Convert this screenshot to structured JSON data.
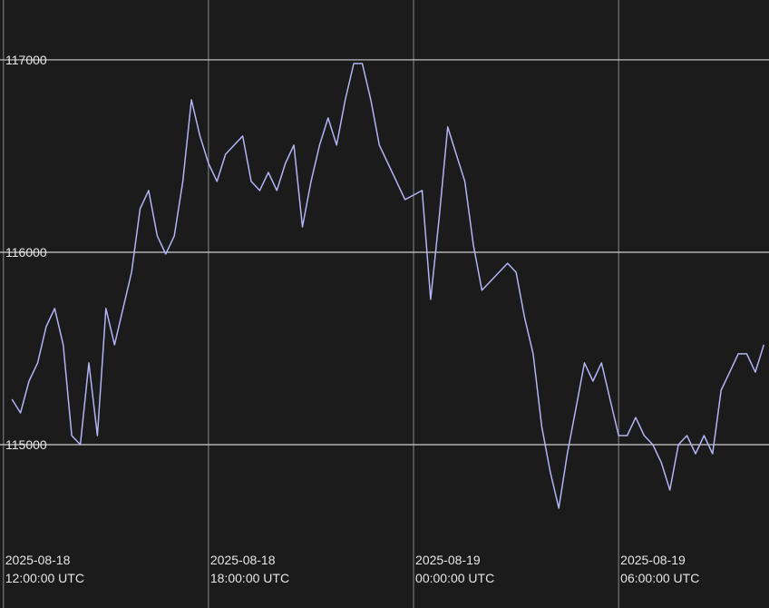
{
  "chart_data": {
    "type": "line",
    "color": "#b3b3f5",
    "x": [
      "2025-08-18 12:15",
      "2025-08-18 12:30",
      "2025-08-18 12:45",
      "2025-08-18 13:00",
      "2025-08-18 13:15",
      "2025-08-18 13:30",
      "2025-08-18 13:45",
      "2025-08-18 14:00",
      "2025-08-18 14:15",
      "2025-08-18 14:30",
      "2025-08-18 14:45",
      "2025-08-18 15:00",
      "2025-08-18 15:15",
      "2025-08-18 15:30",
      "2025-08-18 15:45",
      "2025-08-18 16:00",
      "2025-08-18 16:15",
      "2025-08-18 16:30",
      "2025-08-18 16:45",
      "2025-08-18 17:00",
      "2025-08-18 17:15",
      "2025-08-18 17:30",
      "2025-08-18 17:45",
      "2025-08-18 18:00",
      "2025-08-18 18:15",
      "2025-08-18 18:30",
      "2025-08-18 18:45",
      "2025-08-18 19:00",
      "2025-08-18 19:15",
      "2025-08-18 19:30",
      "2025-08-18 19:45",
      "2025-08-18 20:00",
      "2025-08-18 20:15",
      "2025-08-18 20:30",
      "2025-08-18 20:45",
      "2025-08-18 21:00",
      "2025-08-18 21:15",
      "2025-08-18 21:30",
      "2025-08-18 21:45",
      "2025-08-18 22:00",
      "2025-08-18 22:15",
      "2025-08-18 22:30",
      "2025-08-18 22:45",
      "2025-08-18 23:00",
      "2025-08-18 23:15",
      "2025-08-18 23:30",
      "2025-08-18 23:45",
      "2025-08-19 00:00",
      "2025-08-19 00:15",
      "2025-08-19 00:30",
      "2025-08-19 00:45",
      "2025-08-19 01:00",
      "2025-08-19 01:15",
      "2025-08-19 01:30",
      "2025-08-19 01:45",
      "2025-08-19 02:00",
      "2025-08-19 02:15",
      "2025-08-19 02:30",
      "2025-08-19 02:45",
      "2025-08-19 03:00",
      "2025-08-19 03:15",
      "2025-08-19 03:30",
      "2025-08-19 03:45",
      "2025-08-19 04:00",
      "2025-08-19 04:15",
      "2025-08-19 04:30",
      "2025-08-19 04:45",
      "2025-08-19 05:00",
      "2025-08-19 05:15",
      "2025-08-19 05:30",
      "2025-08-19 05:45",
      "2025-08-19 06:00",
      "2025-08-19 06:15",
      "2025-08-19 06:30",
      "2025-08-19 06:45",
      "2025-08-19 07:00",
      "2025-08-19 07:15",
      "2025-08-19 07:30",
      "2025-08-19 07:45",
      "2025-08-19 08:00",
      "2025-08-19 08:15",
      "2025-08-19 08:30",
      "2025-08-19 08:45",
      "2025-08-19 09:00",
      "2025-08-19 09:15",
      "2025-08-19 09:30",
      "2025-08-19 09:45",
      "2025-08-19 10:00",
      "2025-08-19 10:15"
    ],
    "values": [
      115236,
      115165,
      115330,
      115425,
      115613,
      115708,
      115519,
      115047,
      115000,
      115425,
      115047,
      115708,
      115519,
      115708,
      115896,
      116226,
      116321,
      116085,
      115991,
      116085,
      116368,
      116792,
      116604,
      116462,
      116368,
      116509,
      116557,
      116604,
      116368,
      116321,
      116415,
      116321,
      116462,
      116557,
      116132,
      116368,
      116557,
      116698,
      116557,
      116792,
      116981,
      116981,
      116792,
      116557,
      116462,
      116368,
      116274,
      116297,
      116321,
      115755,
      116179,
      116651,
      116509,
      116368,
      116038,
      115802,
      115849,
      115896,
      115943,
      115896,
      115660,
      115472,
      115094,
      114858,
      114670,
      114953,
      115189,
      115425,
      115330,
      115425,
      115236,
      115047,
      115047,
      115141,
      115047,
      115000,
      114906,
      114764,
      115000,
      115047,
      114953,
      115047,
      114953,
      115283,
      115377,
      115472,
      115472,
      115377,
      115519
    ],
    "xlim": [
      "2025-08-18 11:54",
      "2025-08-19 10:24"
    ],
    "xticks": [
      {
        "value": "2025-08-18 12:00",
        "label": [
          "2025-08-18",
          "12:00:00 UTC"
        ]
      },
      {
        "value": "2025-08-18 18:00",
        "label": [
          "2025-08-18",
          "18:00:00 UTC"
        ]
      },
      {
        "value": "2025-08-19 00:00",
        "label": [
          "2025-08-19",
          "00:00:00 UTC"
        ]
      },
      {
        "value": "2025-08-19 06:00",
        "label": [
          "2025-08-19",
          "06:00:00 UTC"
        ]
      }
    ],
    "ylim": [
      114151,
      117311
    ],
    "yticks": [
      115000,
      116000,
      117000
    ],
    "grid": true
  }
}
